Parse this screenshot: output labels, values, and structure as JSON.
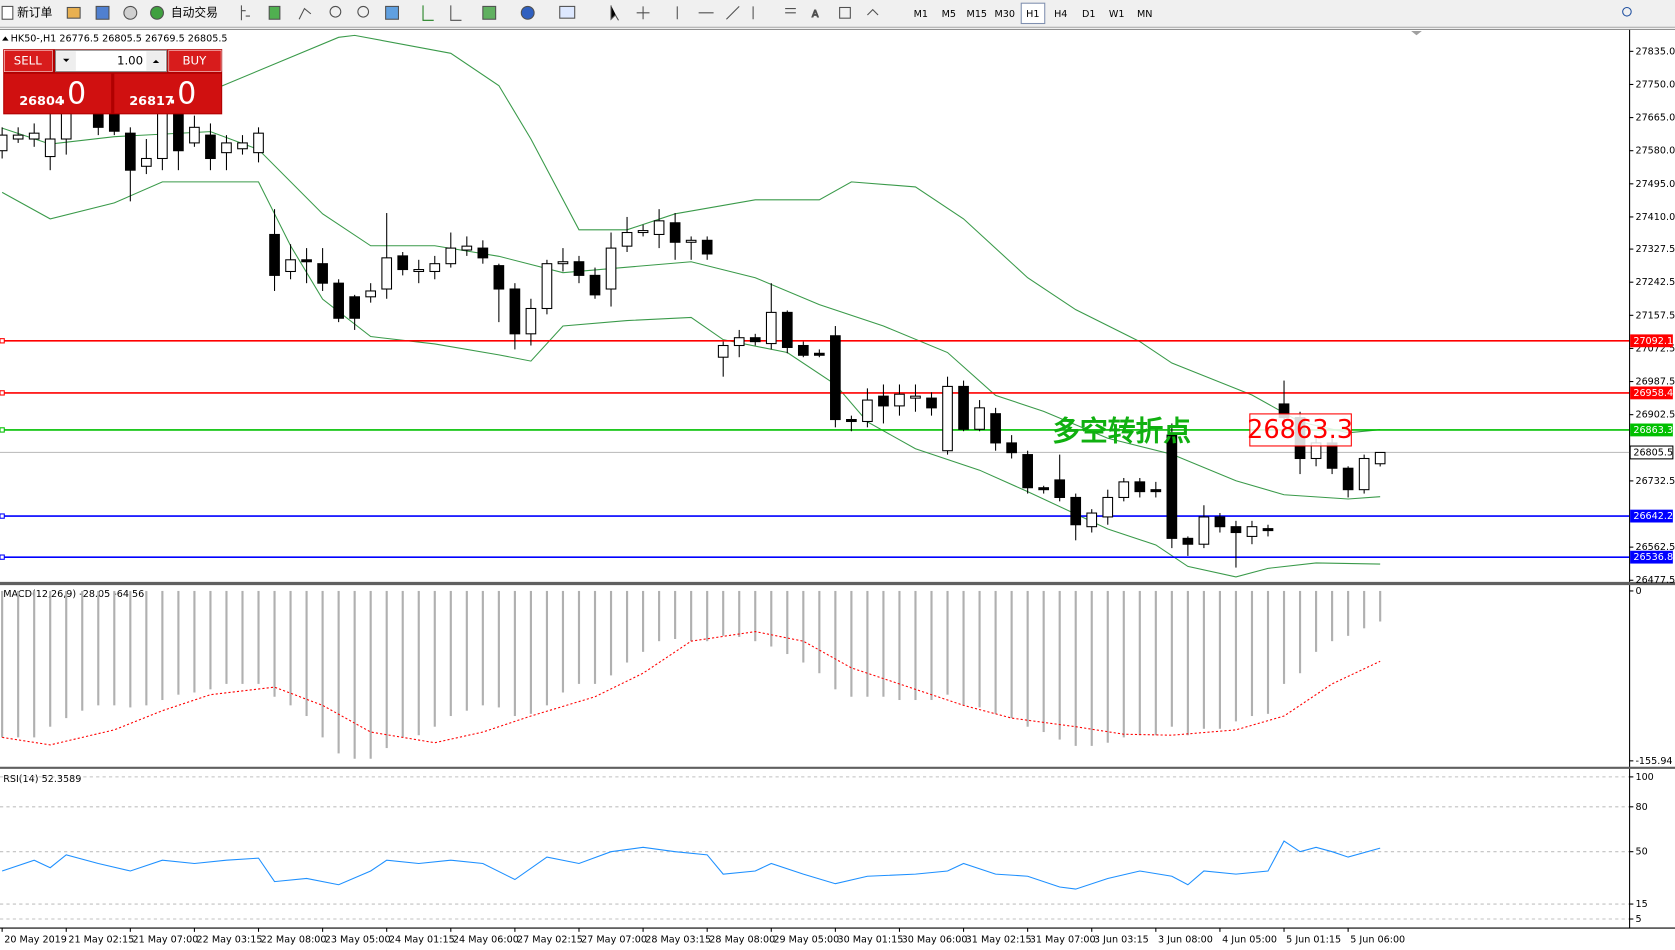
{
  "toolbar": {
    "new_order": "新订单",
    "auto_trade": "自动交易",
    "timeframes": [
      "M1",
      "M5",
      "M15",
      "M30",
      "H1",
      "H4",
      "D1",
      "W1",
      "MN"
    ]
  },
  "trade_panel": {
    "sell": "SELL",
    "buy": "BUY",
    "lot": "1.00",
    "bid": "26804",
    "bid_fraction": ".0",
    "ask": "26817",
    "ask_fraction": ".0"
  },
  "header": {
    "symbol": "HK50-,H1",
    "values": [
      26776.5,
      26805.5,
      26769.5,
      26805.5
    ]
  },
  "chart_data": [
    {
      "type": "candlestick",
      "ylim": [
        26472,
        27890
      ],
      "yticks": [
        {
          "value": 27835,
          "label": "27835.0"
        },
        {
          "value": 27750,
          "label": "27750.0"
        },
        {
          "value": 27665,
          "label": "27665.0"
        },
        {
          "value": 27580,
          "label": "27580.0"
        },
        {
          "value": 27495,
          "label": "27495.0"
        },
        {
          "value": 27410,
          "label": "27410.0"
        },
        27327.5,
        27242.5,
        27157.5,
        27072.5,
        26987.5,
        26902.5,
        26732.5,
        26562.5,
        26477.5
      ],
      "xticks": [
        {
          "value": 0,
          "label": "20 May 2019"
        },
        {
          "value": 4,
          "label": "21 May 02:15"
        },
        {
          "value": 8,
          "label": "21 May 07:00"
        },
        {
          "value": 12,
          "label": "22 May 03:15"
        },
        {
          "value": 16,
          "label": "22 May 08:00"
        },
        {
          "value": 20,
          "label": "23 May 05:00"
        },
        {
          "value": 24,
          "label": "24 May 01:15"
        },
        {
          "value": 28,
          "label": "24 May 06:00"
        },
        {
          "value": 32,
          "label": "27 May 02:15"
        },
        {
          "value": 36,
          "label": "27 May 07:00"
        },
        {
          "value": 40,
          "label": "28 May 03:15"
        },
        {
          "value": 44,
          "label": "28 May 08:00"
        },
        {
          "value": 48,
          "label": "29 May 05:00"
        },
        {
          "value": 52,
          "label": "30 May 01:15"
        },
        {
          "value": 56,
          "label": "30 May 06:00"
        },
        {
          "value": 60,
          "label": "31 May 02:15"
        },
        {
          "value": 64,
          "label": "31 May 07:00"
        },
        {
          "value": 68,
          "label": "3 Jun 03:15"
        },
        {
          "value": 72,
          "label": "3 Jun 08:00"
        },
        {
          "value": 76,
          "label": "4 Jun 05:00"
        },
        {
          "value": 80,
          "label": "5 Jun 01:15"
        },
        {
          "value": 84,
          "label": "5 Jun 06:00"
        }
      ],
      "up_color": "#ffffff",
      "down_color": "#000000",
      "ohlc": [
        [
          27580,
          27640,
          27560,
          27620
        ],
        [
          27610,
          27640,
          27600,
          27620
        ],
        [
          27610,
          27650,
          27590,
          27625
        ],
        [
          27565,
          27680,
          27530,
          27610
        ],
        [
          27610,
          27760,
          27570,
          27700
        ],
        [
          27700,
          27800,
          27680,
          27760
        ],
        [
          27760,
          27790,
          27620,
          27640
        ],
        [
          27680,
          27700,
          27620,
          27630
        ],
        [
          27625,
          27640,
          27450,
          27530
        ],
        [
          27540,
          27610,
          27520,
          27560
        ],
        [
          27560,
          27760,
          27530,
          27700
        ],
        [
          27680,
          27720,
          27530,
          27580
        ],
        [
          27600,
          27670,
          27590,
          27640
        ],
        [
          27620,
          27650,
          27530,
          27560
        ],
        [
          27575,
          27620,
          27530,
          27600
        ],
        [
          27585,
          27620,
          27570,
          27600
        ],
        [
          27575,
          27640,
          27550,
          27625
        ],
        [
          27365,
          27430,
          27220,
          27260
        ],
        [
          27270,
          27340,
          27250,
          27300
        ],
        [
          27300,
          27330,
          27240,
          27295
        ],
        [
          27290,
          27330,
          27220,
          27240
        ],
        [
          27240,
          27250,
          27140,
          27150
        ],
        [
          27205,
          27210,
          27120,
          27150
        ],
        [
          27205,
          27240,
          27190,
          27220
        ],
        [
          27225,
          27420,
          27200,
          27305
        ],
        [
          27310,
          27320,
          27260,
          27275
        ],
        [
          27270,
          27300,
          27240,
          27275
        ],
        [
          27270,
          27310,
          27250,
          27290
        ],
        [
          27290,
          27370,
          27280,
          27330
        ],
        [
          27325,
          27360,
          27310,
          27335
        ],
        [
          27330,
          27350,
          27290,
          27305
        ],
        [
          27285,
          27290,
          27140,
          27225
        ],
        [
          27225,
          27240,
          27070,
          27110
        ],
        [
          27110,
          27200,
          27080,
          27175
        ],
        [
          27175,
          27300,
          27160,
          27290
        ],
        [
          27290,
          27330,
          27270,
          27295
        ],
        [
          27295,
          27310,
          27240,
          27260
        ],
        [
          27260,
          27280,
          27200,
          27210
        ],
        [
          27225,
          27370,
          27180,
          27330
        ],
        [
          27335,
          27410,
          27320,
          27370
        ],
        [
          27370,
          27390,
          27360,
          27375
        ],
        [
          27365,
          27430,
          27330,
          27400
        ],
        [
          27395,
          27420,
          27300,
          27345
        ],
        [
          27345,
          27360,
          27300,
          27350
        ],
        [
          27350,
          27360,
          27300,
          27315
        ],
        [
          27050,
          27090,
          27000,
          27080
        ],
        [
          27080,
          27120,
          27050,
          27100
        ],
        [
          27100,
          27110,
          27080,
          27090
        ],
        [
          27085,
          27240,
          27070,
          27165
        ],
        [
          27165,
          27170,
          27060,
          27075
        ],
        [
          27080,
          27090,
          27050,
          27055
        ],
        [
          27060,
          27070,
          27050,
          27055
        ],
        [
          27105,
          27130,
          26870,
          26890
        ],
        [
          26890,
          26900,
          26860,
          26885
        ],
        [
          26885,
          26970,
          26870,
          26940
        ],
        [
          26950,
          26980,
          26880,
          26925
        ],
        [
          26925,
          26980,
          26900,
          26955
        ],
        [
          26945,
          26980,
          26910,
          26950
        ],
        [
          26945,
          26960,
          26900,
          26920
        ],
        [
          26810,
          27000,
          26800,
          26975
        ],
        [
          26975,
          26990,
          26860,
          26865
        ],
        [
          26865,
          26940,
          26860,
          26920
        ],
        [
          26905,
          26920,
          26810,
          26830
        ],
        [
          26830,
          26850,
          26790,
          26805
        ],
        [
          26800,
          26810,
          26700,
          26715
        ],
        [
          26715,
          26720,
          26700,
          26710
        ],
        [
          26735,
          26800,
          26680,
          26690
        ],
        [
          26690,
          26700,
          26580,
          26620
        ],
        [
          26615,
          26660,
          26600,
          26650
        ],
        [
          26640,
          26710,
          26620,
          26690
        ],
        [
          26690,
          26740,
          26680,
          26730
        ],
        [
          26730,
          26740,
          26690,
          26705
        ],
        [
          26710,
          26730,
          26690,
          26705
        ],
        [
          26850,
          26880,
          26560,
          26585
        ],
        [
          26585,
          26590,
          26540,
          26570
        ],
        [
          26570,
          26670,
          26560,
          26640
        ],
        [
          26640,
          26650,
          26600,
          26615
        ],
        [
          26615,
          26630,
          26510,
          26600
        ],
        [
          26590,
          26630,
          26570,
          26615
        ],
        [
          26610,
          26620,
          26590,
          26605
        ],
        [
          26930,
          26990,
          26880,
          26895
        ],
        [
          26895,
          26910,
          26750,
          26790
        ],
        [
          26790,
          26850,
          26770,
          26830
        ],
        [
          26830,
          26850,
          26750,
          26765
        ],
        [
          26765,
          26770,
          26690,
          26710
        ],
        [
          26710,
          26800,
          26700,
          26790
        ],
        [
          26776.5,
          26805.5,
          26769.5,
          26805.5
        ]
      ],
      "bands": [
        {
          "color": "#3a9a4a",
          "x": [
            13,
            21,
            22,
            28,
            31,
            33,
            36,
            39,
            42,
            47,
            51,
            53,
            57,
            60,
            64,
            67,
            71,
            73,
            78,
            81,
            84,
            86
          ],
          "values": [
            27734,
            27871,
            27876,
            27830,
            27747,
            27610,
            27377,
            27377,
            27418,
            27454,
            27454,
            27500,
            27487,
            27405,
            27254,
            27172,
            27090,
            27035,
            26953,
            26884,
            26856,
            26864
          ]
        },
        {
          "color": "#3a9a4a",
          "x": [
            0,
            3,
            7,
            13,
            16,
            20,
            23,
            27,
            31,
            35,
            43,
            47,
            51,
            55,
            59,
            62,
            65,
            69,
            73,
            77,
            80,
            84,
            86
          ],
          "values": [
            27638,
            27597,
            27616,
            27629,
            27583,
            27418,
            27336,
            27336,
            27309,
            27267,
            27295,
            27254,
            27185,
            27130,
            27062,
            26952,
            26911,
            26842,
            26801,
            26733,
            26697,
            26686,
            26692
          ]
        },
        {
          "color": "#3a9a4a",
          "x": [
            0,
            3,
            7,
            10,
            16,
            18,
            20,
            23,
            27,
            31,
            33,
            35,
            39,
            43,
            45,
            49,
            52,
            54,
            57,
            61,
            64,
            69,
            72,
            74,
            77,
            79,
            82,
            86
          ],
          "values": [
            27473,
            27405,
            27446,
            27500,
            27500,
            27336,
            27199,
            27103,
            27084,
            27056,
            27040,
            27130,
            27144,
            27152,
            27095,
            27062,
            26980,
            26884,
            26815,
            26760,
            26705,
            26609,
            26568,
            26513,
            26486,
            26508,
            26522,
            26519
          ]
        }
      ],
      "hlines": [
        {
          "value": 27092.1,
          "color": "#ff0000"
        },
        {
          "value": 26958.4,
          "color": "#ff0000"
        },
        {
          "value": 26863.3,
          "color": "#00c000"
        },
        {
          "value": 26642.2,
          "color": "#0000ff"
        },
        {
          "value": 26536.8,
          "color": "#0000ff"
        }
      ],
      "current_price": 26805.5,
      "annotation": "多空转折点"
    },
    {
      "type": "macd",
      "title": "MACD(12,26,9)",
      "ylim": [
        -155.94,
        0
      ],
      "yticks": [
        0,
        -155.94
      ],
      "series": [
        {
          "kind": "histogram",
          "color": "#b0b0b0",
          "values": [
            -134.4,
            -134.4,
            -134.4,
            -124.6,
            -116.7,
            -109.9,
            -105.0,
            -105.0,
            -106.9,
            -105.0,
            -100.1,
            -95.2,
            -93.2,
            -90.3,
            -85.3,
            -85.3,
            -85.3,
            -97.1,
            -105.0,
            -114.8,
            -134.4,
            -149.1,
            -154.0,
            -154.0,
            -144.2,
            -134.4,
            -132.4,
            -124.6,
            -114.8,
            -109.9,
            -105.0,
            -106.9,
            -114.8,
            -112.8,
            -105.0,
            -93.2,
            -85.3,
            -85.3,
            -77.5,
            -65.7,
            -55.9,
            -46.1,
            -44.1,
            -46.1,
            -46.1,
            -41.2,
            -42.2,
            -46.1,
            -51.0,
            -57.9,
            -65.7,
            -75.5,
            -90.3,
            -97.1,
            -97.1,
            -97.1,
            -100.1,
            -100.1,
            -100.1,
            -95.2,
            -105.0,
            -106.9,
            -112.8,
            -116.7,
            -124.6,
            -129.5,
            -136.4,
            -142.2,
            -142.2,
            -139.3,
            -134.4,
            -132.4,
            -132.4,
            -124.6,
            -132.4,
            -126.5,
            -126.5,
            -119.7,
            -114.8,
            -112.8,
            -85.3,
            -75.5,
            -55.9,
            -46.1,
            -41.2,
            -34.3,
            -28.05
          ]
        },
        {
          "kind": "signal",
          "color": "#ff0000",
          "x": [
            0,
            3,
            7,
            10,
            13,
            17,
            20,
            23,
            27,
            30,
            33,
            37,
            40,
            43,
            47,
            50,
            53,
            57,
            60,
            63,
            67,
            70,
            73,
            77,
            80,
            83,
            86
          ],
          "values": [
            -134.4,
            -141.3,
            -127.5,
            -109.9,
            -95.2,
            -88.3,
            -105.0,
            -129.5,
            -139.3,
            -129.5,
            -114.8,
            -97.1,
            -75.5,
            -46.1,
            -37.3,
            -46.1,
            -70.6,
            -90.3,
            -105.0,
            -116.7,
            -124.6,
            -131.5,
            -132.4,
            -127.5,
            -114.8,
            -85.3,
            -64.56
          ]
        }
      ]
    },
    {
      "type": "rsi",
      "title": "RSI(14)",
      "ylim": [
        0,
        100
      ],
      "yticks": [
        100,
        80,
        50,
        15,
        5
      ],
      "color": "#1e90ff",
      "x": [
        0,
        2,
        3,
        4,
        6,
        8,
        10,
        12,
        14,
        16,
        17,
        19,
        21,
        23,
        24,
        26,
        28,
        30,
        32,
        34,
        36,
        38,
        40,
        42,
        44,
        45,
        47,
        48,
        50,
        52,
        54,
        57,
        59,
        60,
        62,
        64,
        66,
        67,
        69,
        71,
        73,
        74,
        75,
        77,
        79,
        80,
        81,
        82,
        83,
        84,
        86
      ],
      "values": [
        37.1,
        44.3,
        39.3,
        47.9,
        42.1,
        37.1,
        44.3,
        42.1,
        44.3,
        45.7,
        30.0,
        32.1,
        27.9,
        37.1,
        44.3,
        42.1,
        44.3,
        42.1,
        31.4,
        46.4,
        42.1,
        50.0,
        52.9,
        50.0,
        47.9,
        35.0,
        37.1,
        42.1,
        35.0,
        28.6,
        33.6,
        35.0,
        37.1,
        42.1,
        35.0,
        33.6,
        26.4,
        25.0,
        32.1,
        37.1,
        33.6,
        27.9,
        37.1,
        35.0,
        37.1,
        57.1,
        50.0,
        52.9,
        50.0,
        46.4,
        52.3589
      ]
    }
  ]
}
